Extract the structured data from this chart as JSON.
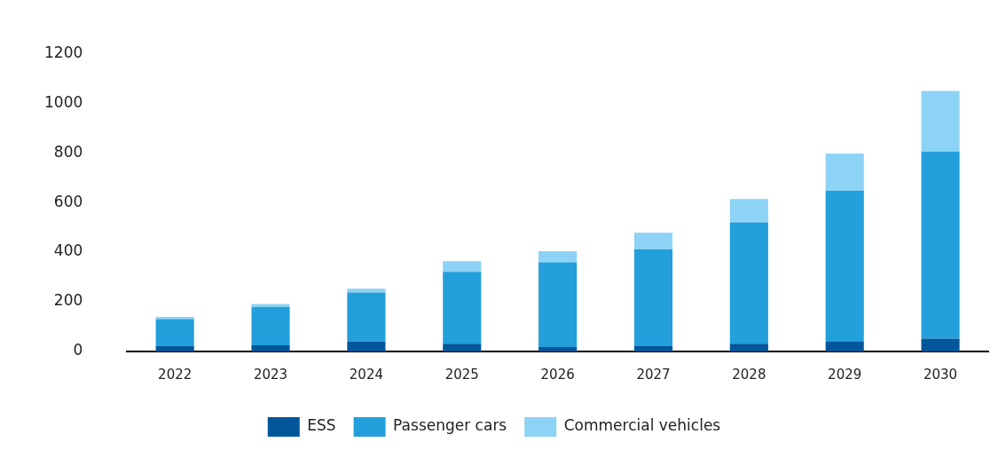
{
  "chart_data": {
    "type": "bar",
    "stacked": true,
    "categories": [
      "2022",
      "2023",
      "2024",
      "2025",
      "2026",
      "2027",
      "2028",
      "2029",
      "2030"
    ],
    "series": [
      {
        "name": "ESS",
        "color": "#02579b",
        "values": [
          22,
          25,
          40,
          31,
          18,
          23,
          31,
          39,
          52
        ]
      },
      {
        "name": "Passenger cars",
        "color": "#239fdb",
        "values": [
          108,
          154,
          198,
          290,
          341,
          388,
          489,
          609,
          753
        ]
      },
      {
        "name": "Commercial vehicles",
        "color": "#8dd3f6",
        "values": [
          9,
          12,
          15,
          43,
          45,
          67,
          94,
          149,
          244
        ]
      }
    ],
    "ylim": [
      0,
      1200
    ],
    "yticks": [
      0,
      200,
      400,
      600,
      800,
      1000,
      1200
    ],
    "grid": false,
    "legend": "bottom"
  }
}
